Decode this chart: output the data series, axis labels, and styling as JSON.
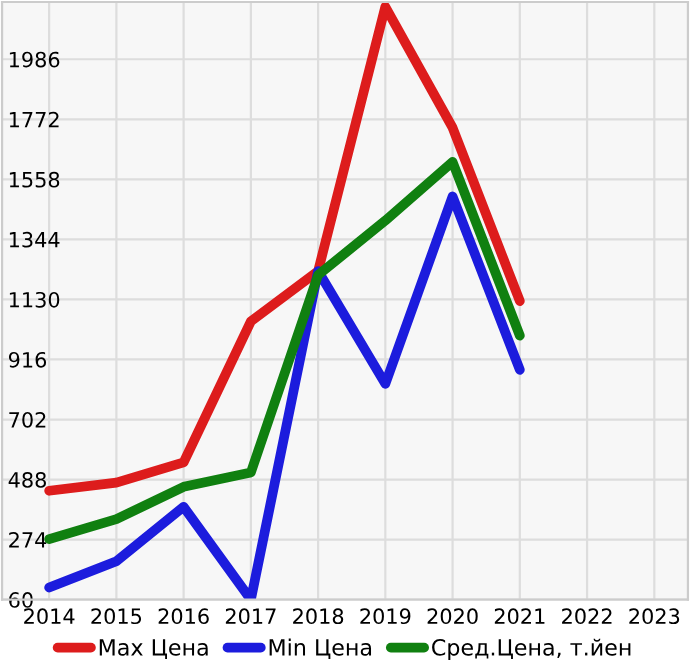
{
  "chart_data": {
    "type": "line",
    "x": [
      2014,
      2015,
      2016,
      2017,
      2018,
      2019,
      2020,
      2021
    ],
    "series": [
      {
        "name": "Max Цена",
        "color": "#dd1c1c",
        "values": [
          448,
          477,
          549,
          1052,
          1231,
          2173,
          1742,
          1124
        ]
      },
      {
        "name": "Min Цена",
        "color": "#1c1cdd",
        "values": [
          103,
          197,
          391,
          60,
          1231,
          829,
          1497,
          879
        ]
      },
      {
        "name": "Сред.Цена, т.йен",
        "color": "#108010",
        "values": [
          276,
          347,
          462,
          513,
          1217,
          1411,
          1620,
          1001
        ]
      }
    ],
    "xlim": [
      2013.3,
      2023.5
    ],
    "xticks": [
      2014,
      2015,
      2016,
      2017,
      2018,
      2019,
      2020,
      2021,
      2022,
      2023
    ],
    "ylim": [
      60,
      2190
    ],
    "yticks": [
      60,
      274,
      488,
      702,
      916,
      1130,
      1344,
      1558,
      1772,
      1986
    ],
    "grid": true,
    "legend": "bottom",
    "marker": "none",
    "line_style": "solid"
  }
}
